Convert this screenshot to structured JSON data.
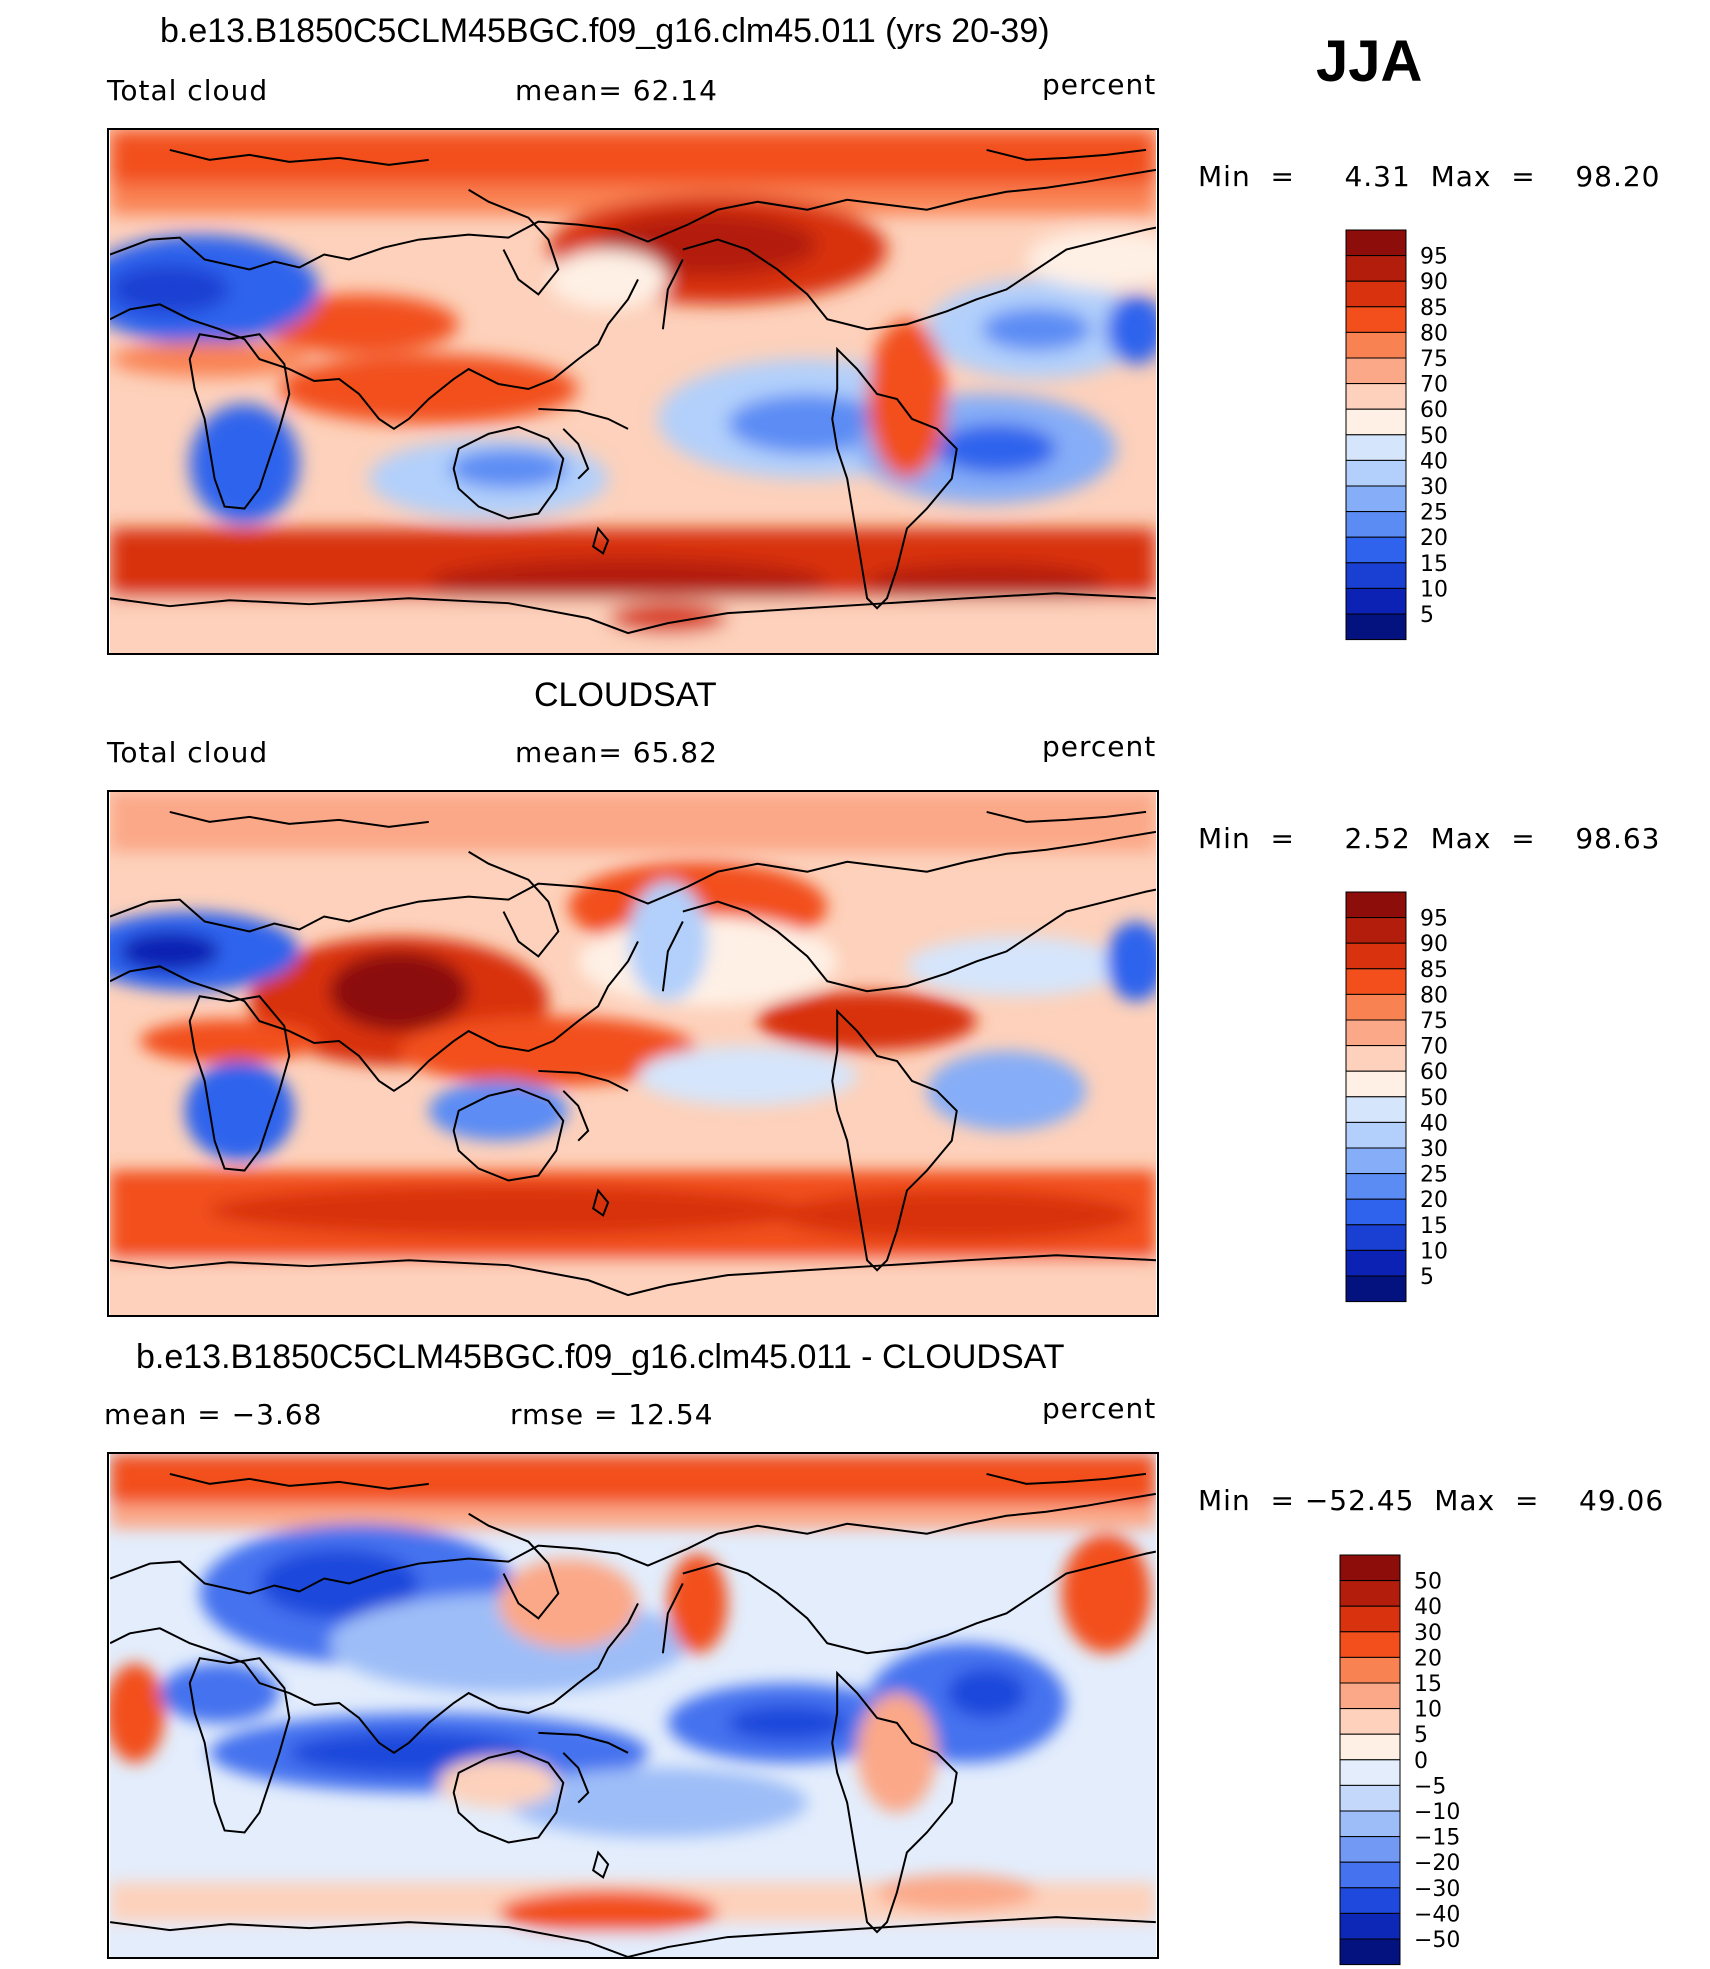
{
  "season": "JJA",
  "panels": [
    {
      "id": "model",
      "title": "b.e13.B1850C5CLM45BGC.f09_g16.clm45.011 (yrs 20-39)",
      "left_label": "Total cloud",
      "mid_label": "mean=   62.14",
      "right_label": "percent",
      "minmax": "Min  =     4.31  Max  =    98.20",
      "colorbar": {
        "labels": [
          "95",
          "90",
          "85",
          "80",
          "75",
          "70",
          "60",
          "50",
          "40",
          "30",
          "25",
          "20",
          "15",
          "10",
          "5"
        ],
        "colors": [
          "#8c0d0a",
          "#b31d0c",
          "#d8320f",
          "#f24f1c",
          "#f98253",
          "#fba888",
          "#fdd1bb",
          "#fef0e5",
          "#d5e5fb",
          "#b2d0fb",
          "#86adf7",
          "#5b8cf4",
          "#2f63ed",
          "#1a3fd3",
          "#0b22b4",
          "#03127e"
        ]
      }
    },
    {
      "id": "obs",
      "title": "CLOUDSAT",
      "left_label": "Total cloud",
      "mid_label": "mean=   65.82",
      "right_label": "percent",
      "minmax": "Min  =     2.52  Max  =    98.63",
      "colorbar": {
        "labels": [
          "95",
          "90",
          "85",
          "80",
          "75",
          "70",
          "60",
          "50",
          "40",
          "30",
          "25",
          "20",
          "15",
          "10",
          "5"
        ],
        "colors": [
          "#8c0d0a",
          "#b31d0c",
          "#d8320f",
          "#f24f1c",
          "#f98253",
          "#fba888",
          "#fdd1bb",
          "#fef0e5",
          "#d5e5fb",
          "#b2d0fb",
          "#86adf7",
          "#5b8cf4",
          "#2f63ed",
          "#1a3fd3",
          "#0b22b4",
          "#03127e"
        ]
      }
    },
    {
      "id": "diff",
      "title": "b.e13.B1850C5CLM45BGC.f09_g16.clm45.011 - CLOUDSAT",
      "left_label": "mean  =    −3.68",
      "mid_label": "rmse  =    12.54",
      "right_label": "percent",
      "minmax": "Min  = −52.45  Max  =    49.06",
      "colorbar": {
        "labels": [
          "50",
          "40",
          "30",
          "20",
          "15",
          "10",
          "5",
          "0",
          "−5",
          "−10",
          "−15",
          "−20",
          "−30",
          "−40",
          "−50"
        ],
        "colors": [
          "#8c0d0a",
          "#b31d0c",
          "#d8320f",
          "#f24f1c",
          "#f98253",
          "#fba888",
          "#fdd1bb",
          "#fef0e5",
          "#e3edfc",
          "#c3d8fb",
          "#9dbdf8",
          "#7299f4",
          "#4572ef",
          "#1f49dc",
          "#0d27b7",
          "#03127e"
        ]
      }
    }
  ]
}
